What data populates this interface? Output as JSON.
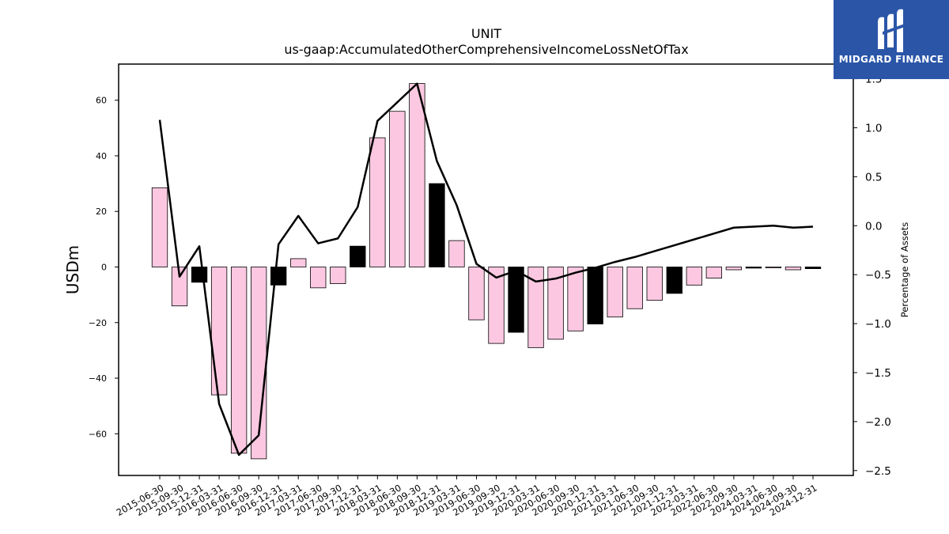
{
  "chart_data": {
    "type": "bar",
    "title": "UNIT",
    "subtitle": "us-gaap:AccumulatedOtherComprehensiveIncomeLossNetOfTax",
    "ylabel": "USDm",
    "y2label": "Percentage of Assets",
    "ylim": [
      -75,
      73
    ],
    "y2lim": [
      -2.55,
      1.65
    ],
    "yticks": [
      -60,
      -40,
      -20,
      0,
      20,
      40,
      60
    ],
    "y2ticks": [
      -2.5,
      -2.0,
      -1.5,
      -1.0,
      -0.5,
      0.0,
      0.5,
      1.0,
      1.5
    ],
    "categories": [
      "2015-06-30",
      "2015-09-30",
      "2015-12-31",
      "2016-03-31",
      "2016-06-30",
      "2016-09-30",
      "2016-12-31",
      "2017-03-31",
      "2017-06-30",
      "2017-09-30",
      "2017-12-31",
      "2018-03-31",
      "2018-06-30",
      "2018-09-30",
      "2018-12-31",
      "2019-03-31",
      "2019-06-30",
      "2019-09-30",
      "2019-12-31",
      "2020-03-31",
      "2020-06-30",
      "2020-09-30",
      "2020-12-31",
      "2021-03-31",
      "2021-06-30",
      "2021-09-30",
      "2021-12-31",
      "2022-03-31",
      "2022-06-30",
      "2022-09-30",
      "2024-03-31",
      "2024-06-30",
      "2024-09-30",
      "2024-12-31"
    ],
    "series": [
      {
        "type": "bar",
        "values": [
          28.5,
          -14,
          -5.5,
          -46,
          -67,
          -69,
          -6.5,
          3,
          -7.5,
          -6,
          7.5,
          46.5,
          56,
          66,
          30,
          9.5,
          -19,
          -27.5,
          -23.5,
          -29,
          -26,
          -23,
          -20.5,
          -18,
          -15,
          -12,
          -9.5,
          -6.5,
          -4,
          -1,
          -0.4,
          -0.3,
          -1,
          -0.6
        ],
        "highlight": [
          false,
          false,
          true,
          false,
          false,
          false,
          true,
          false,
          false,
          false,
          true,
          false,
          false,
          false,
          true,
          false,
          false,
          false,
          true,
          false,
          false,
          false,
          true,
          false,
          false,
          false,
          true,
          false,
          false,
          false,
          true,
          false,
          false,
          true
        ]
      },
      {
        "type": "line",
        "axis": "right",
        "values": [
          1.08,
          -0.52,
          -0.21,
          -1.82,
          -2.34,
          -2.14,
          -0.19,
          0.1,
          -0.18,
          -0.13,
          0.19,
          1.07,
          1.26,
          1.45,
          0.66,
          0.21,
          -0.39,
          -0.53,
          -0.46,
          -0.57,
          -0.54,
          -0.48,
          -0.43,
          -0.37,
          -0.32,
          -0.26,
          -0.2,
          -0.14,
          -0.08,
          -0.02,
          -0.01,
          0.0,
          -0.02,
          -0.01
        ]
      }
    ],
    "colors": {
      "bar_fill": "#fcc8e1",
      "bar_highlight": "#000000",
      "line": "#000000"
    },
    "legend": "none",
    "grid": false
  },
  "logo": {
    "text": "MIDGARD FINANCE"
  }
}
